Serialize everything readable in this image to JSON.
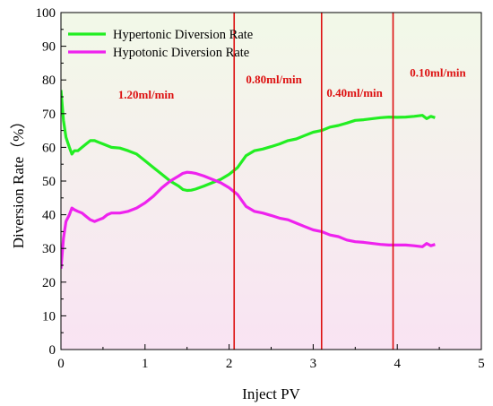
{
  "chart_data": {
    "type": "line",
    "xlabel": "Inject PV",
    "ylabel": "Diversion Rate（%）",
    "xlim": [
      0,
      5
    ],
    "ylim": [
      0,
      100
    ],
    "xticks": [
      0,
      1,
      2,
      3,
      4,
      5
    ],
    "yticks": [
      0,
      10,
      20,
      30,
      40,
      50,
      60,
      70,
      80,
      90,
      100
    ],
    "grid": false,
    "legend_position": "top-left",
    "background_gradient": {
      "top": "#f2f9e8",
      "bottom": "#f9e3f3"
    },
    "series": [
      {
        "name": "Hypertonic Diversion Rate",
        "color": "#22ee22",
        "x": [
          0.0,
          0.03,
          0.06,
          0.1,
          0.13,
          0.16,
          0.2,
          0.25,
          0.3,
          0.35,
          0.4,
          0.45,
          0.5,
          0.55,
          0.6,
          0.7,
          0.8,
          0.9,
          1.0,
          1.1,
          1.2,
          1.3,
          1.4,
          1.45,
          1.5,
          1.55,
          1.6,
          1.7,
          1.8,
          1.9,
          2.0,
          2.1,
          2.2,
          2.3,
          2.4,
          2.5,
          2.6,
          2.7,
          2.8,
          2.9,
          3.0,
          3.1,
          3.2,
          3.3,
          3.4,
          3.5,
          3.6,
          3.7,
          3.8,
          3.9,
          4.0,
          4.1,
          4.2,
          4.3,
          4.35,
          4.4,
          4.45
        ],
        "y": [
          77,
          68,
          63,
          60,
          58,
          59,
          59,
          60,
          61,
          62,
          62,
          61.5,
          61,
          60.5,
          60,
          59.8,
          59,
          58,
          56,
          54,
          52,
          50,
          48.5,
          47.5,
          47.2,
          47.3,
          47.6,
          48.5,
          49.5,
          50.5,
          52,
          54,
          57.5,
          59,
          59.5,
          60.2,
          61,
          62,
          62.5,
          63.5,
          64.5,
          65,
          66,
          66.5,
          67.2,
          68,
          68.2,
          68.5,
          68.8,
          69,
          68.9,
          69,
          69.2,
          69.5,
          68.5,
          69.2,
          68.8
        ]
      },
      {
        "name": "Hypotonic Diversion Rate",
        "color": "#ee22ee",
        "x": [
          0.0,
          0.03,
          0.06,
          0.1,
          0.13,
          0.16,
          0.2,
          0.25,
          0.3,
          0.35,
          0.4,
          0.45,
          0.5,
          0.55,
          0.6,
          0.7,
          0.8,
          0.9,
          1.0,
          1.1,
          1.2,
          1.3,
          1.4,
          1.45,
          1.5,
          1.55,
          1.6,
          1.7,
          1.8,
          1.9,
          2.0,
          2.1,
          2.2,
          2.3,
          2.4,
          2.5,
          2.6,
          2.7,
          2.8,
          2.9,
          3.0,
          3.1,
          3.2,
          3.3,
          3.4,
          3.5,
          3.6,
          3.7,
          3.8,
          3.9,
          4.0,
          4.1,
          4.2,
          4.3,
          4.35,
          4.4,
          4.45
        ],
        "y": [
          24,
          33,
          38,
          40,
          42,
          41.5,
          41,
          40.5,
          39.5,
          38.5,
          38,
          38.5,
          39,
          40,
          40.5,
          40.5,
          41,
          42,
          43.5,
          45.5,
          48,
          50,
          51.5,
          52.3,
          52.6,
          52.5,
          52.3,
          51.5,
          50.5,
          49.5,
          48,
          46,
          42.5,
          41,
          40.5,
          39.8,
          39,
          38.5,
          37.5,
          36.5,
          35.5,
          35,
          34,
          33.5,
          32.5,
          32,
          31.8,
          31.5,
          31.2,
          31,
          31,
          31,
          30.8,
          30.5,
          31.5,
          30.8,
          31.2
        ]
      }
    ],
    "vlines": {
      "color": "#dd1111",
      "x": [
        2.06,
        3.1,
        3.95
      ]
    },
    "annotations": [
      {
        "text": "1.20ml/min",
        "x": 0.68,
        "y": 74.5,
        "color": "#dd1111"
      },
      {
        "text": "0.80ml/min",
        "x": 2.2,
        "y": 79,
        "color": "#dd1111"
      },
      {
        "text": "0.40ml/min",
        "x": 3.16,
        "y": 75,
        "color": "#dd1111"
      },
      {
        "text": "0.10ml/min",
        "x": 4.15,
        "y": 81,
        "color": "#dd1111"
      }
    ]
  }
}
